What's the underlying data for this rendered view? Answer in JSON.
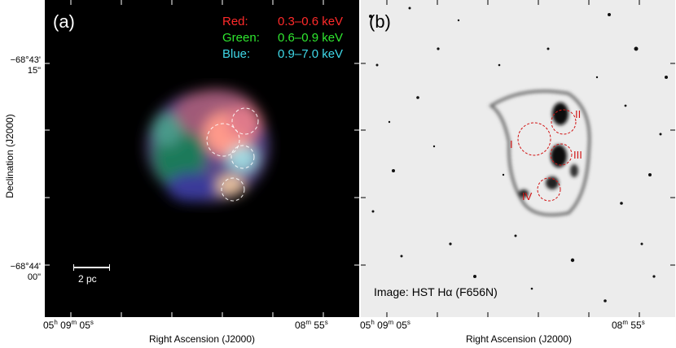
{
  "axes": {
    "ylabel": "Declination (J2000)",
    "xlabel": "Right Ascension (J2000)",
    "yticks": [
      {
        "deg": "−68°43'",
        "sec": "15\""
      },
      {
        "deg": "−68°44'",
        "sec": "00\""
      }
    ],
    "xticks": [
      {
        "h": "05",
        "hs": "h",
        "m": "09",
        "ms": "m",
        "s": "05",
        "ss": "s"
      },
      {
        "m": "08",
        "ms": "m",
        "s": "55",
        "ss": "s"
      }
    ]
  },
  "panel_a": {
    "label": "(a)",
    "legend": [
      {
        "key": "Red:",
        "value": "0.3–0.6 keV",
        "color": "#ff2a2a"
      },
      {
        "key": "Green:",
        "value": "0.6–0.9 keV",
        "color": "#2fe62f"
      },
      {
        "key": "Blue:",
        "value": "0.9–7.0 keV",
        "color": "#3fd8e8"
      }
    ],
    "scalebar": "2 pc"
  },
  "panel_b": {
    "label": "(b)",
    "credit": "Image: HST Hα (F656N)",
    "regions": [
      "I",
      "II",
      "III",
      "IV"
    ],
    "region_color": "#d21414"
  }
}
